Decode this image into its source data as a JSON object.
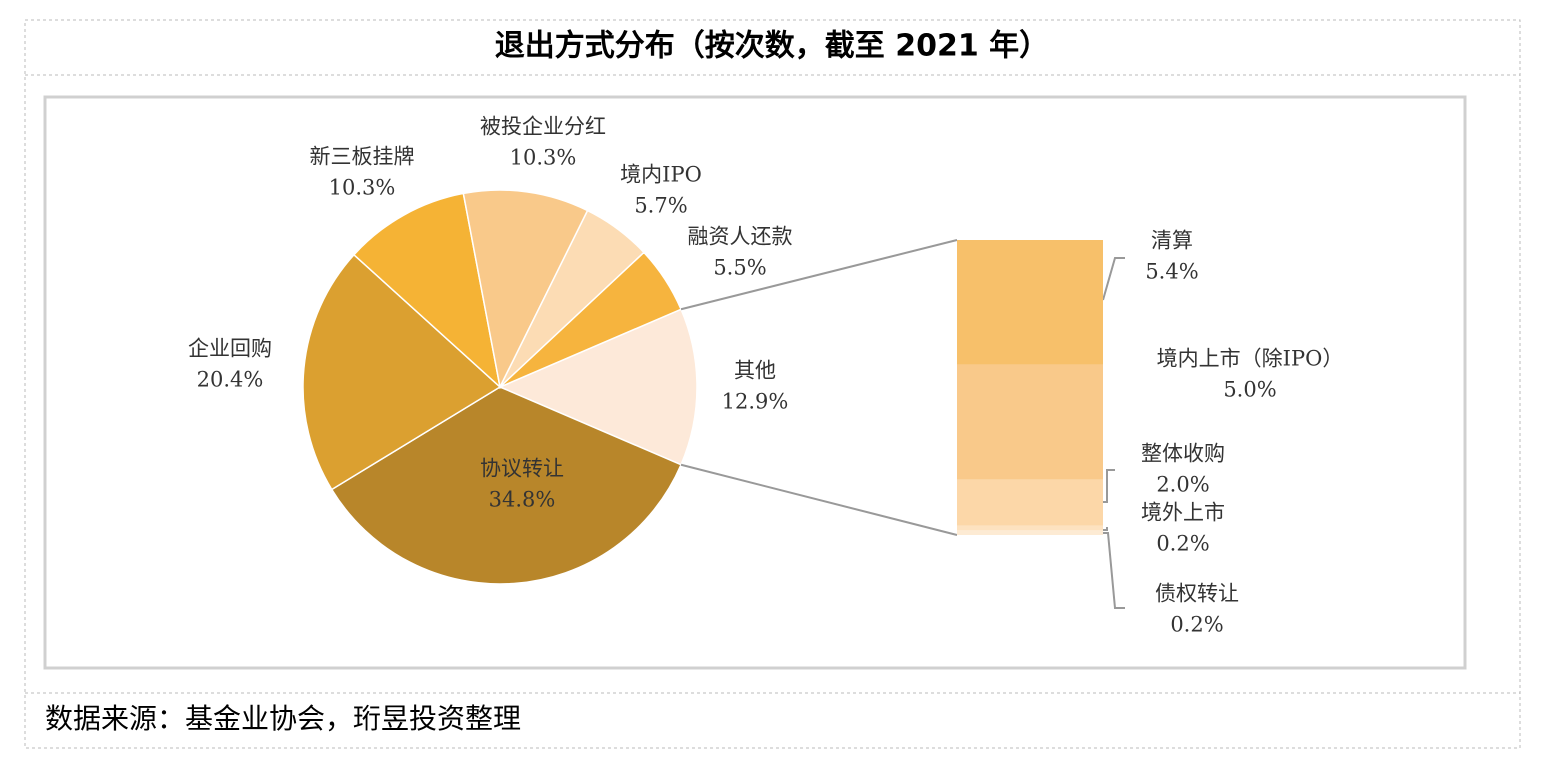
{
  "chart_data": {
    "type": "pie",
    "title": "退出方式分布（按次数，截至 2021 年）",
    "categories": [
      "其他",
      "协议转让",
      "企业回购",
      "新三板挂牌",
      "被投企业分红",
      "境内IPO",
      "融资人还款"
    ],
    "values": [
      12.9,
      34.8,
      20.4,
      10.3,
      10.3,
      5.7,
      5.5
    ],
    "value_labels": [
      "12.9%",
      "34.8%",
      "20.4%",
      "10.3%",
      "10.3%",
      "5.7%",
      "5.5%"
    ],
    "colors": [
      "#fde9d9",
      "#b8862a",
      "#dba030",
      "#f5b335",
      "#f9c98a",
      "#fcdcb4",
      "#f6b43e"
    ],
    "breakdown": {
      "categories": [
        "清算",
        "境内上市（除IPO）",
        "整体收购",
        "境外上市",
        "债权转让"
      ],
      "values": [
        5.4,
        5.0,
        2.0,
        0.2,
        0.2
      ],
      "value_labels": [
        "5.4%",
        "5.0%",
        "2.0%",
        "0.2%",
        "0.2%"
      ],
      "colors": [
        "#f7c06a",
        "#f9c98a",
        "#fcd7a8",
        "#fde2c0",
        "#fdebd4"
      ]
    }
  },
  "source": "数据来源：基金业协会，珩昱投资整理"
}
